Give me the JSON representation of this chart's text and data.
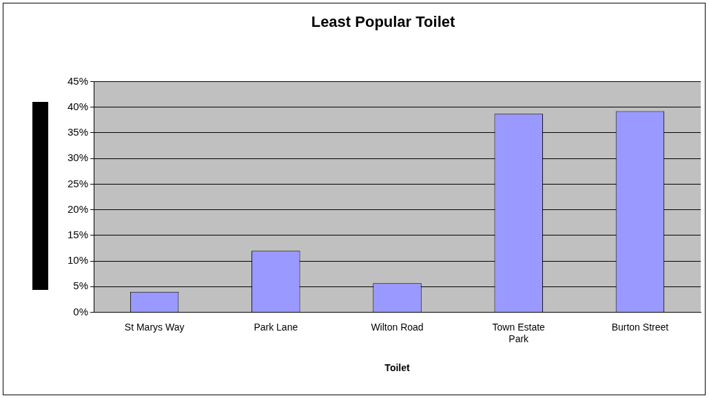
{
  "chart_data": {
    "type": "bar",
    "title": "Least Popular Toilet",
    "xlabel": "Toilet",
    "categories": [
      "St Marys Way",
      "Park Lane",
      "Wilton Road",
      "Town Estate Park",
      "Burton Street"
    ],
    "values": [
      4,
      12,
      5.7,
      38.7,
      39.2
    ],
    "color": "#9999ff",
    "ylim": [
      0,
      45
    ],
    "yticks": [
      {
        "value": 0,
        "label": "0%"
      },
      {
        "value": 5,
        "label": "5%"
      },
      {
        "value": 10,
        "label": "10%"
      },
      {
        "value": 15,
        "label": "15%"
      },
      {
        "value": 20,
        "label": "20%"
      },
      {
        "value": 25,
        "label": "25%"
      },
      {
        "value": 30,
        "label": "30%"
      },
      {
        "value": 35,
        "label": "35%"
      },
      {
        "value": 40,
        "label": "40%"
      },
      {
        "value": 45,
        "label": "45%"
      }
    ],
    "grid": "y",
    "legend": false
  }
}
